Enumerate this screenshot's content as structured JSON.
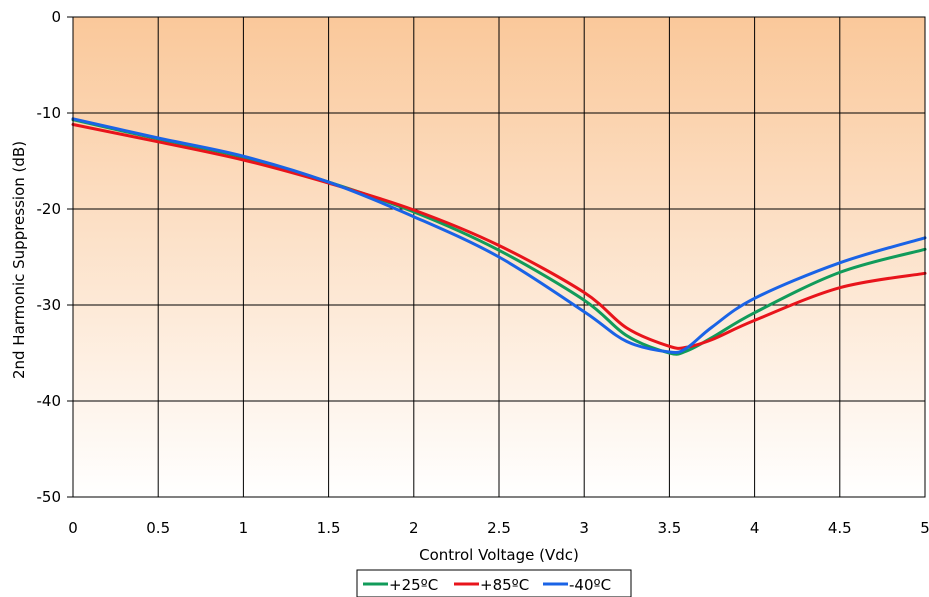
{
  "chart_data": {
    "type": "line",
    "title": "",
    "xlabel": "Control Voltage (Vdc)",
    "ylabel": "2nd Harmonic Suppression (dB)",
    "xlim": [
      0,
      5
    ],
    "ylim": [
      -50,
      0
    ],
    "x_ticks": [
      "0",
      "0.5",
      "1",
      "1.5",
      "2",
      "2.5",
      "3",
      "3.5",
      "4",
      "4.5",
      "5"
    ],
    "y_ticks": [
      "0",
      "-10",
      "-20",
      "-30",
      "-40",
      "-50"
    ],
    "grid": true,
    "legend_position": "bottom",
    "background_gradient": [
      "#fac89a",
      "#ffffff"
    ],
    "x": [
      0,
      0.5,
      1,
      1.5,
      2,
      2.5,
      3,
      3.25,
      3.5,
      3.6,
      3.75,
      4,
      4.5,
      5
    ],
    "series": [
      {
        "name": "+25ºC",
        "color": "#119b5a",
        "values": [
          -10.7,
          -12.7,
          -14.6,
          -17.2,
          -20.3,
          -24.3,
          -29.5,
          -33.2,
          -35.0,
          -34.8,
          -33.4,
          -30.8,
          -26.6,
          -24.2
        ]
      },
      {
        "name": "+85ºC",
        "color": "#e8141b",
        "values": [
          -11.2,
          -13.0,
          -14.9,
          -17.3,
          -20.1,
          -23.8,
          -28.7,
          -32.4,
          -34.3,
          -34.4,
          -33.6,
          -31.6,
          -28.2,
          -26.7
        ]
      },
      {
        "name": "-40ºC",
        "color": "#1a63e6",
        "values": [
          -10.6,
          -12.6,
          -14.5,
          -17.2,
          -20.8,
          -25.0,
          -30.7,
          -33.8,
          -34.9,
          -34.5,
          -32.3,
          -29.3,
          -25.6,
          -23.0
        ]
      }
    ]
  }
}
